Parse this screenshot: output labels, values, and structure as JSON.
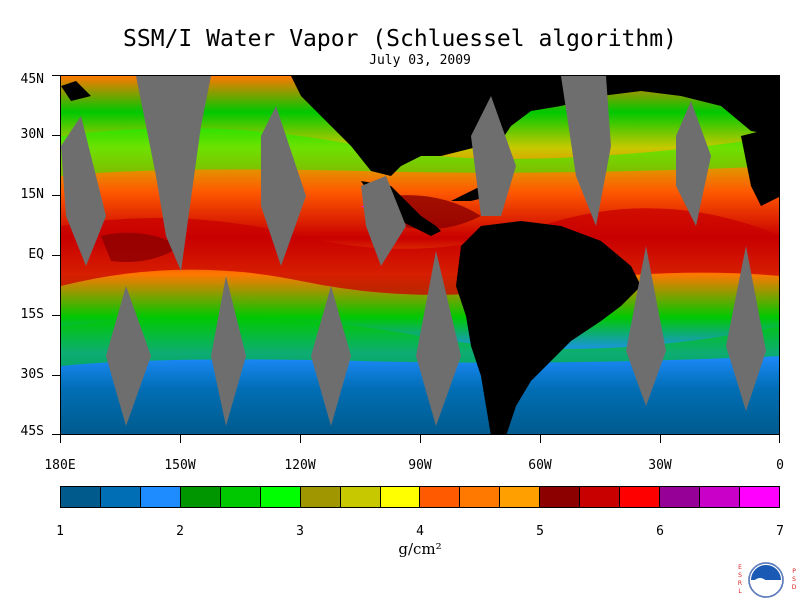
{
  "title": "SSM/I Water Vapor (Schluessel algorithm)",
  "date": "July 03, 2009",
  "lat_labels": [
    "45N",
    "30N",
    "15N",
    "EQ",
    "15S",
    "30S",
    "45S"
  ],
  "lon_labels": [
    "180E",
    "150W",
    "120W",
    "90W",
    "60W",
    "30W",
    "0"
  ],
  "colorbar": {
    "labels": [
      "1",
      "2",
      "3",
      "4",
      "5",
      "6",
      "7"
    ],
    "units": "g/cm²",
    "colors": [
      "#005a8c",
      "#006eb4",
      "#1e8cff",
      "#009600",
      "#00c800",
      "#00ff00",
      "#a09600",
      "#c8c800",
      "#ffff00",
      "#ff5a00",
      "#ff7800",
      "#ffa000",
      "#8c0000",
      "#c80000",
      "#ff0000",
      "#960096",
      "#c800c8",
      "#ff00ff"
    ]
  },
  "colors": {
    "land": "#000000",
    "no_data_gap": "#6e6e6e",
    "ocean_low": "#006eb4",
    "ocean_high": "#c80000"
  },
  "logo": {
    "left_letters": [
      "E",
      "S",
      "R",
      "L"
    ],
    "right_letters": [
      "P",
      "S",
      "D"
    ],
    "name": "noaa-logo"
  }
}
